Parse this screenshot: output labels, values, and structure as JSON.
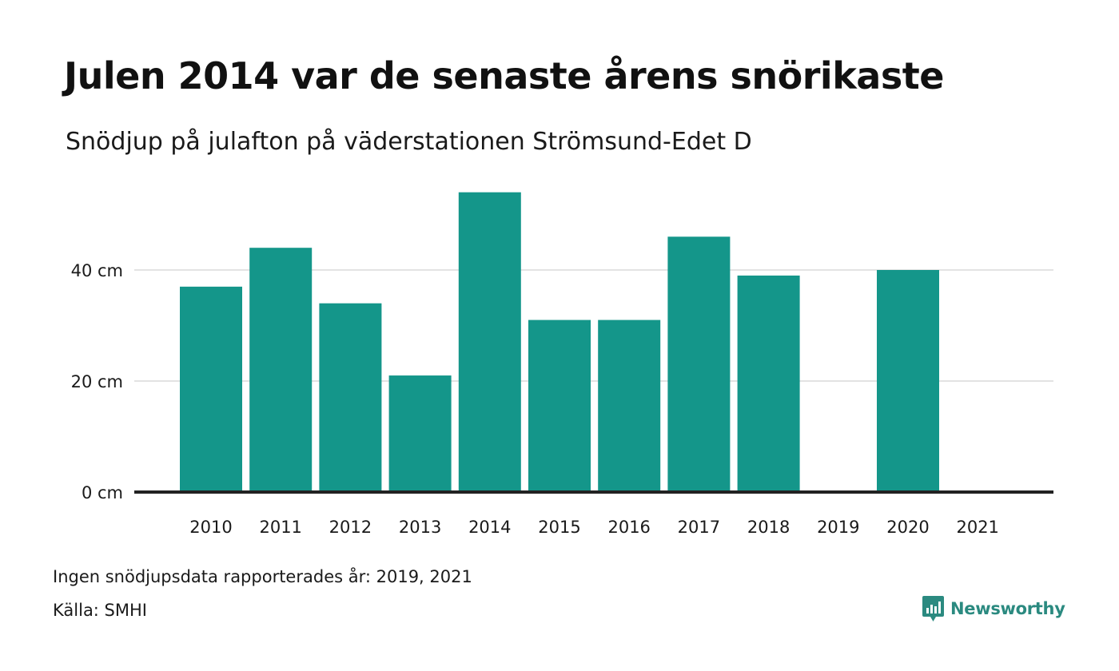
{
  "header": {
    "title": "Julen 2014 var de senaste årens snörikaste",
    "subtitle": "Snödjup på julafton på väderstationen Strömsund-Edet D"
  },
  "footer": {
    "missing_note": "Ingen snödjupsdata rapporterades år: 2019, 2021",
    "source": "Källa: SMHI",
    "brand": "Newsworthy"
  },
  "colors": {
    "bar": "#14968a",
    "grid": "#e3e3e3",
    "axis": "#222222",
    "brand": "#2b8a80"
  },
  "chart_data": {
    "type": "bar",
    "categories": [
      "2010",
      "2011",
      "2012",
      "2013",
      "2014",
      "2015",
      "2016",
      "2017",
      "2018",
      "2019",
      "2020",
      "2021"
    ],
    "values": [
      37,
      44,
      34,
      21,
      54,
      31,
      31,
      46,
      39,
      null,
      40,
      null
    ],
    "yticks": [
      0,
      20,
      40
    ],
    "ytick_labels": [
      "0 cm",
      "20 cm",
      "40 cm"
    ],
    "ylim": [
      0,
      54
    ],
    "grid": true
  }
}
